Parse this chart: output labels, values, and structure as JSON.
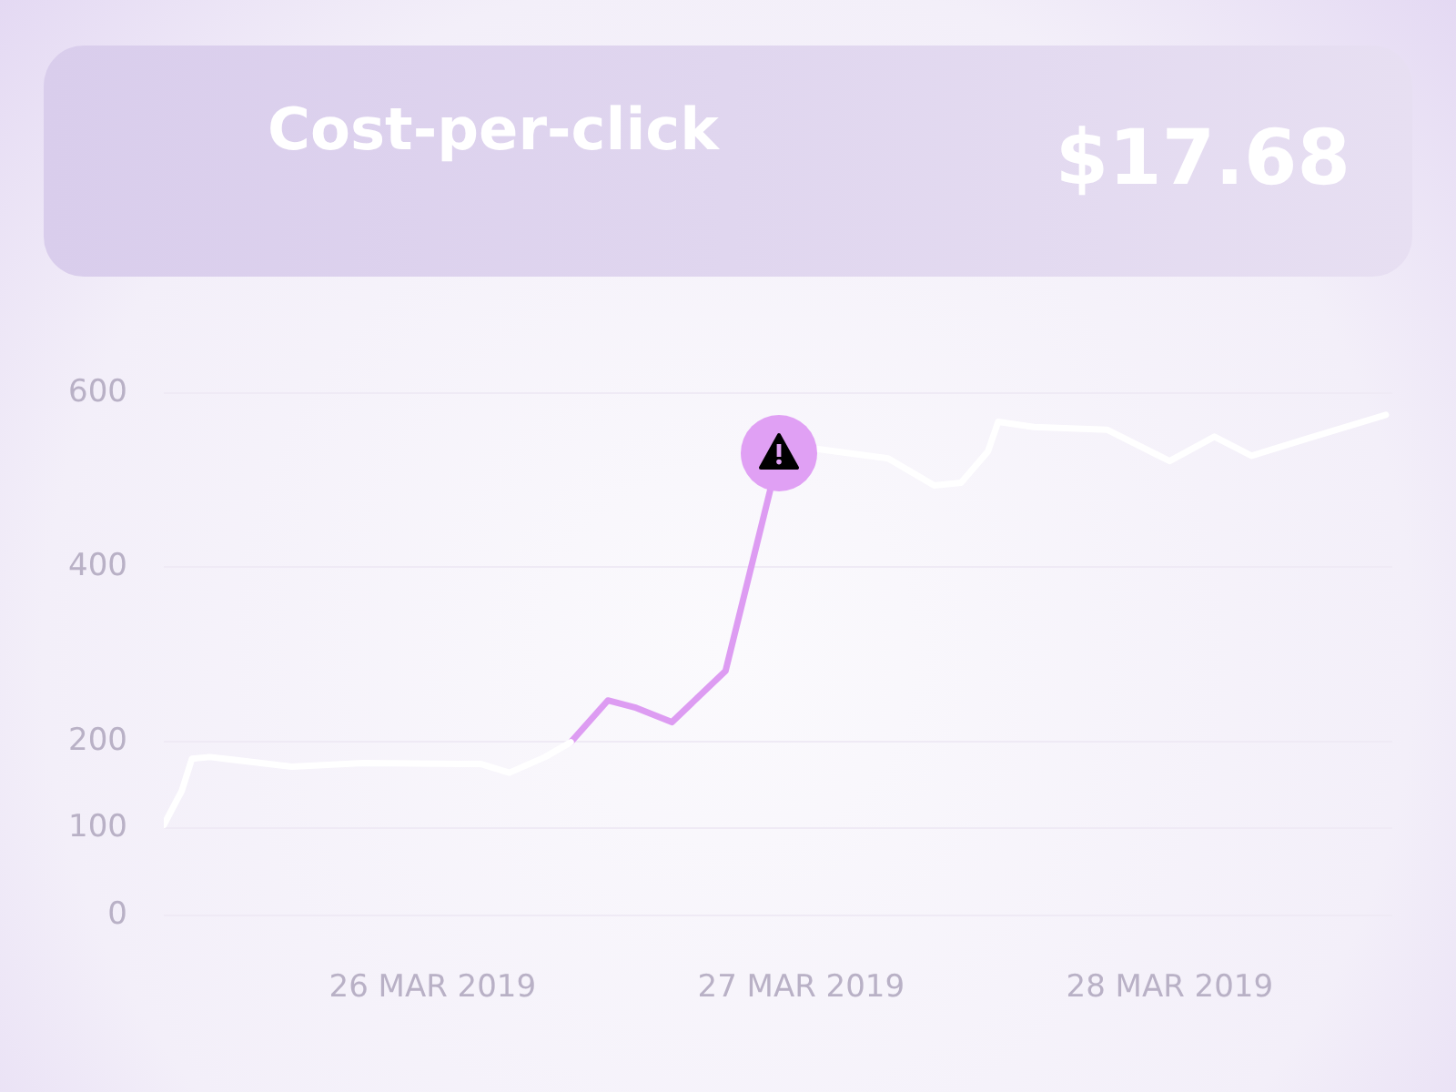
{
  "chart_data": {
    "type": "line",
    "title": "Cost-per-click",
    "annotations": [
      "$17.68"
    ],
    "series": [
      {
        "color": "#ffffff",
        "x": [
          "2019-03-25T06:30",
          "2019-03-25T07:40",
          "2019-03-25T08:20",
          "2019-03-25T09:30",
          "2019-03-25T14:50",
          "2019-03-25T19:30",
          "2019-03-26T03:10",
          "2019-03-26T05:00",
          "2019-03-26T07:20",
          "2019-03-26T09:00"
        ],
        "values": [
          104,
          143,
          180,
          182,
          171,
          175,
          174,
          164,
          182,
          199
        ]
      },
      {
        "color": "#dd9cf2",
        "x": [
          "2019-03-26T09:00",
          "2019-03-26T11:25",
          "2019-03-26T13:10",
          "2019-03-26T15:35",
          "2019-03-26T19:05",
          "2019-03-26T22:35"
        ],
        "values": [
          199,
          247,
          239,
          222,
          281,
          531
        ]
      },
      {
        "color": "#ffffff",
        "x": [
          "2019-03-26T22:35",
          "2019-03-27T01:00",
          "2019-03-27T05:40",
          "2019-03-27T08:40",
          "2019-03-27T10:25",
          "2019-03-27T12:10",
          "2019-03-27T12:50",
          "2019-03-27T15:10",
          "2019-03-27T19:55",
          "2019-03-28T00:00",
          "2019-03-28T02:55",
          "2019-03-28T05:20",
          "2019-03-28T08:50",
          "2019-03-28T14:05"
        ],
        "values": [
          531,
          536,
          525,
          494,
          497,
          533,
          567,
          561,
          558,
          522,
          550,
          528,
          547,
          575
        ]
      }
    ],
    "xlim": [
      "2019-03-25T06:30",
      "2019-03-28T14:30"
    ],
    "xticks": [
      {
        "value": "2019-03-26",
        "label": "26 MAR 2019"
      },
      {
        "value": "2019-03-27",
        "label": "27 MAR 2019"
      },
      {
        "value": "2019-03-28",
        "label": "28 MAR 2019"
      }
    ],
    "ylim": [
      0,
      600
    ],
    "yticks": [
      0,
      100,
      200,
      400,
      600
    ],
    "grid": "y",
    "legend": false,
    "marker": "none",
    "line_style": "solid"
  }
}
